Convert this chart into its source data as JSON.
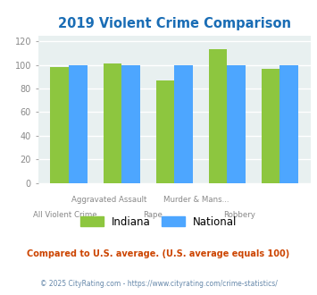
{
  "title": "2019 Violent Crime Comparison",
  "categories": [
    "All Violent Crime",
    "Aggravated Assault",
    "Rape",
    "Murder & Mans...",
    "Robbery"
  ],
  "indiana_values": [
    98,
    101,
    87,
    113,
    97
  ],
  "national_values": [
    100,
    100,
    100,
    100,
    100
  ],
  "indiana_color": "#8dc63f",
  "national_color": "#4da6ff",
  "bg_color": "#e8f0f0",
  "title_color": "#1a6db5",
  "ylabel_ticks": [
    0,
    20,
    40,
    60,
    80,
    100,
    120
  ],
  "ylim": [
    0,
    125
  ],
  "legend_indiana": "Indiana",
  "legend_national": "National",
  "note_line1": "Compared to U.S. average. (U.S. average equals 100)",
  "note_line2": "© 2025 CityRating.com - https://www.cityrating.com/crime-statistics/",
  "note_color": "#cc4400",
  "copyright_color": "#6688aa",
  "cat_labels_top": [
    "",
    "Aggravated Assault",
    "",
    "Murder & Mans...",
    ""
  ],
  "cat_labels_bot": [
    "All Violent Crime",
    "",
    "Rape",
    "",
    "Robbery"
  ]
}
